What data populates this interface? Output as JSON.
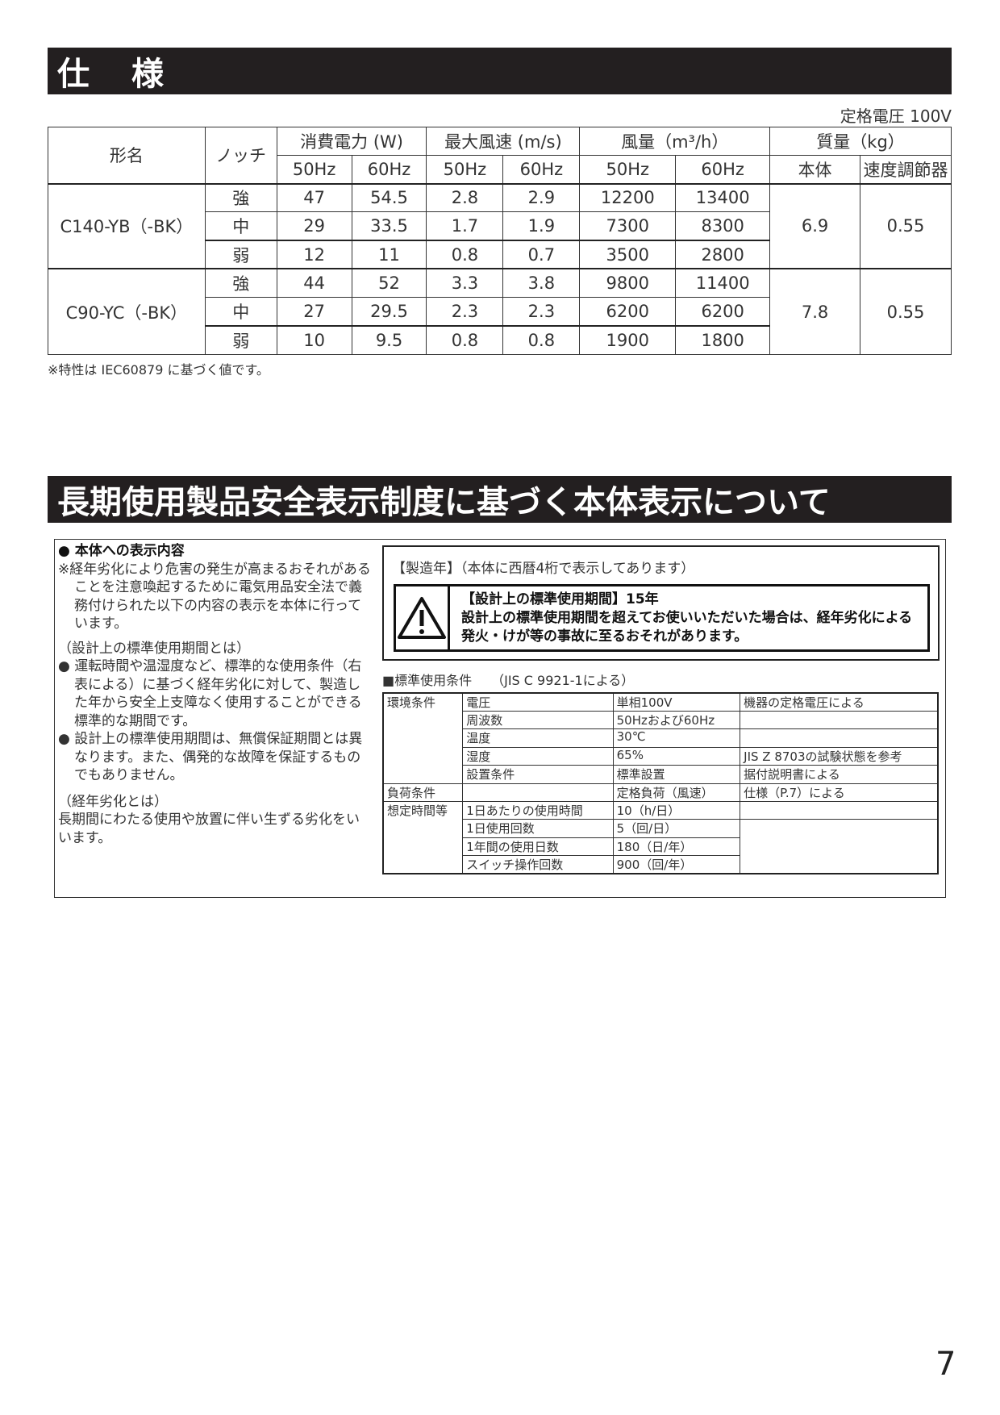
{
  "spec": {
    "title": "仕　様",
    "rated_voltage": "定格電圧 100V",
    "headers": {
      "model": "形名",
      "notch": "ノッチ",
      "power": "消費電力 (W)",
      "speed": "最大風速 (m/s)",
      "airflow": "風量（m³/h）",
      "mass": "質量（kg）",
      "hz50": "50Hz",
      "hz60": "60Hz",
      "body": "本体",
      "controller": "速度調節器"
    },
    "models": [
      {
        "name": "C140-YB（-BK）",
        "mass_body": "6.9",
        "mass_controller": "0.55",
        "rows": [
          {
            "notch": "強",
            "p50": "47",
            "p60": "54.5",
            "s50": "2.8",
            "s60": "2.9",
            "a50": "12200",
            "a60": "13400"
          },
          {
            "notch": "中",
            "p50": "29",
            "p60": "33.5",
            "s50": "1.7",
            "s60": "1.9",
            "a50": "7300",
            "a60": "8300"
          },
          {
            "notch": "弱",
            "p50": "12",
            "p60": "11",
            "s50": "0.8",
            "s60": "0.7",
            "a50": "3500",
            "a60": "2800"
          }
        ]
      },
      {
        "name": "C90-YC（-BK）",
        "mass_body": "7.8",
        "mass_controller": "0.55",
        "rows": [
          {
            "notch": "強",
            "p50": "44",
            "p60": "52",
            "s50": "3.3",
            "s60": "3.8",
            "a50": "9800",
            "a60": "11400"
          },
          {
            "notch": "中",
            "p50": "27",
            "p60": "29.5",
            "s50": "2.3",
            "s60": "2.3",
            "a50": "6200",
            "a60": "6200"
          },
          {
            "notch": "弱",
            "p50": "10",
            "p60": "9.5",
            "s50": "0.8",
            "s60": "0.8",
            "a50": "1900",
            "a60": "1800"
          }
        ]
      }
    ],
    "footnote": "※特性は IEC60879 に基づく値です。"
  },
  "safety": {
    "title": "長期使用製品安全表示制度に基づく本体表示について",
    "left": {
      "heading": "● 本体への表示内容",
      "p1": "※経年劣化により危害の発生が高まるおそれがあることを注意喚起するために電気用品安全法で義務付けられた以下の内容の表示を本体に行っています。",
      "sub1": "（設計上の標準使用期間とは）",
      "b1": "● 運転時間や温湿度など、標準的な使用条件（右表による）に基づく経年劣化に対して、製造した年から安全上支障なく使用することができる標準的な期間です。",
      "b2": "● 設計上の標準使用期間は、無償保証期間とは異なります。また、偶発的な故障を保証するものでもありません。",
      "sub2": "（経年劣化とは）",
      "p2": "長期間にわたる使用や放置に伴い生ずる劣化をいいます。"
    },
    "manufacture": "【製造年】（本体に西暦4桁で表示してあります）",
    "warning": {
      "icon": "warning-triangle-icon",
      "line1": "【設計上の標準使用期間】15年",
      "line2": "設計上の標準使用期間を超えてお使いいただいた場合は、経年劣化による発火・けが等の事故に至るおそれがあります。"
    },
    "conditions_title": "■標準使用条件　　（JIS C 9921-1による）",
    "conditions": {
      "env": "環境条件",
      "load": "負荷条件",
      "time": "想定時間等",
      "rows": [
        [
          "電圧",
          "単相100V",
          "機器の定格電圧による"
        ],
        [
          "周波数",
          "50Hzおよび60Hz",
          ""
        ],
        [
          "温度",
          "30℃",
          ""
        ],
        [
          "湿度",
          "65%",
          "JIS Z 8703の試験状態を参考"
        ],
        [
          "設置条件",
          "標準設置",
          "据付説明書による"
        ],
        [
          "",
          "定格負荷（風速）",
          "仕様（P.7）による"
        ],
        [
          "1日あたりの使用時間",
          "10（h/日）",
          ""
        ],
        [
          "1日使用回数",
          "5（回/日）",
          ""
        ],
        [
          "1年間の使用日数",
          "180（日/年）",
          ""
        ],
        [
          "スイッチ操作回数",
          "900（回/年）",
          ""
        ]
      ]
    }
  },
  "page_number": "7"
}
